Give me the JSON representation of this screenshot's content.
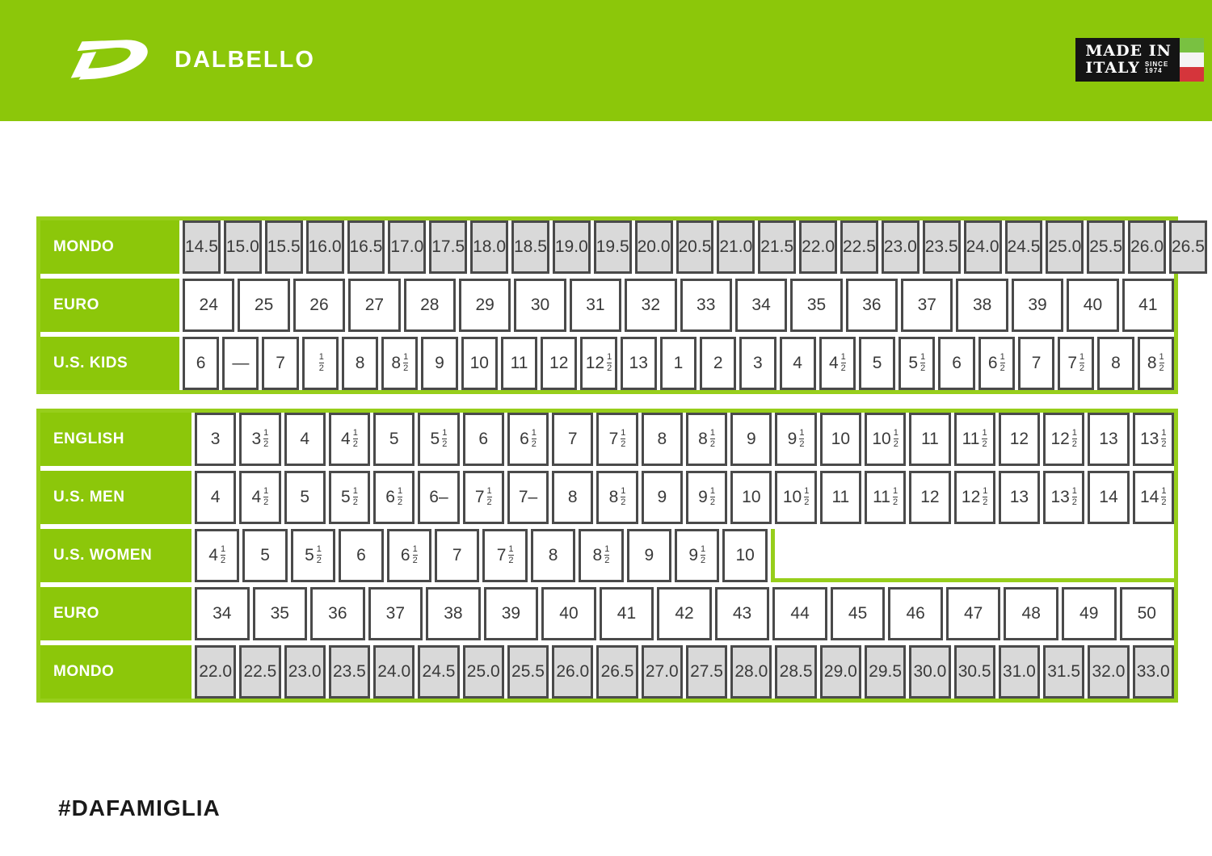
{
  "brand": {
    "wordmark": "DALBELLO"
  },
  "badge": {
    "line1": "MADE IN",
    "line2": "ITALY",
    "since_top": "SINCE",
    "since_bottom": "1974"
  },
  "colors": {
    "green": "#8CC70A",
    "table_border_green": "#97CE1B",
    "cell_border": "#4A4A4A",
    "cell_bg_gray": "#D9D9D9",
    "cell_text": "#3A3A3A",
    "badge_bg": "#141414",
    "flag_green": "#79C141",
    "flag_white": "#F4F4F4",
    "flag_red": "#D5353B"
  },
  "kids_table": {
    "rows": [
      {
        "label": "MONDO",
        "style": "gray",
        "values": [
          "14.5",
          "15.0",
          "15.5",
          "16.0",
          "16.5",
          "17.0",
          "17.5",
          "18.0",
          "18.5",
          "19.0",
          "19.5",
          "20.0",
          "20.5",
          "21.0",
          "21.5",
          "22.0",
          "22.5",
          "23.0",
          "23.5",
          "24.0",
          "24.5",
          "25.0",
          "25.5",
          "26.0",
          "26.5"
        ]
      },
      {
        "label": "EURO",
        "style": "white",
        "values": [
          "24",
          "25",
          "26",
          "27",
          "28",
          "29",
          "30",
          "31",
          "32",
          "33",
          "34",
          "35",
          "36",
          "37",
          "38",
          "39",
          "40",
          "41"
        ]
      },
      {
        "label": "U.S. KIDS",
        "style": "white",
        "values": [
          "6",
          "—",
          "7",
          "½",
          "8",
          "8½",
          "9",
          "10",
          "11",
          "12",
          "12½",
          "13",
          "1",
          "2",
          "3",
          "4",
          "4½",
          "5",
          "5½",
          "6",
          "6½",
          "7",
          "7½",
          "8",
          "8½"
        ]
      }
    ]
  },
  "adult_table": {
    "rows": [
      {
        "label": "ENGLISH",
        "style": "white",
        "values": [
          "3",
          "3½",
          "4",
          "4½",
          "5",
          "5½",
          "6",
          "6½",
          "7",
          "7½",
          "8",
          "8½",
          "9",
          "9½",
          "10",
          "10½",
          "11",
          "11½",
          "12",
          "12½",
          "13",
          "13½"
        ]
      },
      {
        "label": "U.S. MEN",
        "style": "white",
        "values": [
          "4",
          "4½",
          "5",
          "5½",
          "6½",
          "6–",
          "7½",
          "7–",
          "8",
          "8½",
          "9",
          "9½",
          "10",
          "10½",
          "11",
          "11½",
          "12",
          "12½",
          "13",
          "13½",
          "14",
          "14½"
        ]
      },
      {
        "label": "U.S. WOMEN",
        "style": "white",
        "pad_to": 22,
        "values": [
          "4½",
          "5",
          "5½",
          "6",
          "6½",
          "7",
          "7½",
          "8",
          "8½",
          "9",
          "9½",
          "10"
        ]
      },
      {
        "label": "EURO",
        "style": "white",
        "values": [
          "34",
          "35",
          "36",
          "37",
          "38",
          "39",
          "40",
          "41",
          "42",
          "43",
          "44",
          "45",
          "46",
          "47",
          "48",
          "49",
          "50"
        ]
      },
      {
        "label": "MONDO",
        "style": "gray",
        "values": [
          "22.0",
          "22.5",
          "23.0",
          "23.5",
          "24.0",
          "24.5",
          "25.0",
          "25.5",
          "26.0",
          "26.5",
          "27.0",
          "27.5",
          "28.0",
          "28.5",
          "29.0",
          "29.5",
          "30.0",
          "30.5",
          "31.0",
          "31.5",
          "32.0",
          "33.0"
        ]
      }
    ]
  },
  "footer": {
    "hashtag": "#DAFAMIGLIA"
  }
}
